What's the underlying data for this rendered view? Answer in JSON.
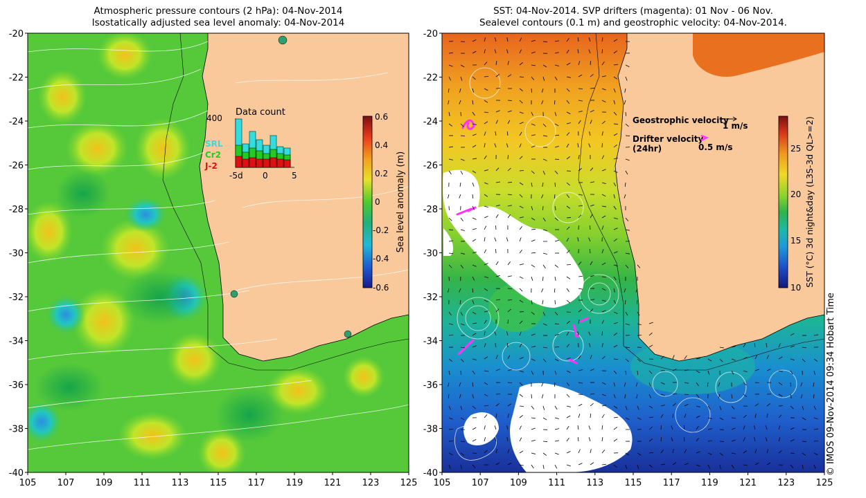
{
  "left_panel": {
    "title_line1": "Atmospheric pressure contours (2 hPa): 04-Nov-2014",
    "title_line2": "Isostatically adjusted sea level anomaly: 04-Nov-2014",
    "y_ticks": [
      "-20",
      "-22",
      "-24",
      "-26",
      "-28",
      "-30",
      "-32",
      "-34",
      "-36",
      "-38",
      "-40"
    ],
    "x_ticks": [
      "105",
      "107",
      "109",
      "111",
      "113",
      "115",
      "117",
      "119",
      "121",
      "123",
      "125"
    ],
    "colorbar": {
      "label": "Sea level anomaly (m)",
      "ticks": [
        "0.6",
        "0.4",
        "0.2",
        "0",
        "-0.2",
        "-0.4",
        "-0.6"
      ]
    },
    "inset": {
      "title": "Data count",
      "y_label": "400",
      "x_ticks": [
        "-5d",
        "0",
        "5"
      ],
      "legend": [
        {
          "label": "SRL",
          "color": "#33dddd"
        },
        {
          "label": "Cr2",
          "color": "#22cc22"
        },
        {
          "label": "J-2",
          "color": "#dd1111"
        }
      ]
    }
  },
  "right_panel": {
    "title_line1": "SST: 04-Nov-2014. SVP drifters (magenta): 01 Nov - 06 Nov.",
    "title_line2": "Sealevel contours (0.1 m) and geostrophic velocity: 04-Nov-2014.",
    "y_ticks": [
      "-20",
      "-22",
      "-24",
      "-26",
      "-28",
      "-30",
      "-32",
      "-34",
      "-36",
      "-38",
      "-40"
    ],
    "x_ticks": [
      "105",
      "107",
      "109",
      "111",
      "113",
      "115",
      "117",
      "119",
      "121",
      "123",
      "125"
    ],
    "legend_geo_label": "Geostrophic velocity",
    "legend_geo_value": "1 m/s",
    "legend_drifter_label": "Drifter velocity",
    "legend_drifter_sub": "(24hr)",
    "legend_drifter_value": "0.5 m/s",
    "colorbar": {
      "label": "SST (°C) 3d night&day (L3S-3d QL>=2)",
      "ticks": [
        "25",
        "20",
        "15",
        "10"
      ]
    }
  },
  "credit": "© IMOS 09-Nov-2014 09:34 Hobart Time",
  "colors": {
    "land": "#f9c99c",
    "ocean_sla_mid": "#55cc33",
    "magenta": "#ff33ff",
    "cloud": "#ffffff"
  }
}
